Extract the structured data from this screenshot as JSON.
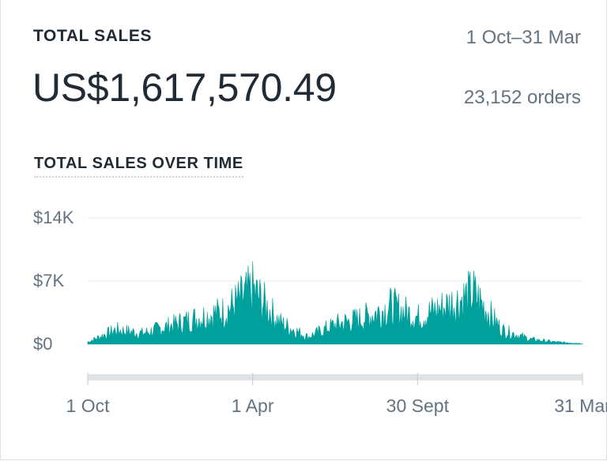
{
  "header": {
    "title": "TOTAL SALES",
    "date_range": "1 Oct–31 Mar",
    "total": "US$1,617,570.49",
    "orders": "23,152 orders",
    "subtitle": "TOTAL SALES OVER TIME"
  },
  "colors": {
    "series": "#00a09c",
    "grid": "#e6e9ec",
    "axis": "#dfe3e8",
    "text_muted": "#637381"
  },
  "chart_data": {
    "type": "area",
    "title": "TOTAL SALES OVER TIME",
    "xlabel": "",
    "ylabel": "",
    "ylim": [
      0,
      14000
    ],
    "y_ticks": [
      "$14K",
      "$7K",
      "$0"
    ],
    "y_tick_values": [
      14000,
      7000,
      0
    ],
    "x_ticks": [
      "1 Oct",
      "1 Apr",
      "30 Sept",
      "31 Mar"
    ],
    "x_range": [
      "2017-10-01",
      "2019-03-31"
    ],
    "grid": true,
    "legend": "none",
    "series": [
      {
        "values": [
          {
            "x": "2017-10-01",
            "y": 300
          },
          {
            "x": "2017-11-01",
            "y": 2000
          },
          {
            "x": "2017-12-01",
            "y": 1500
          },
          {
            "x": "2018-01-01",
            "y": 2600
          },
          {
            "x": "2018-02-01",
            "y": 3700
          },
          {
            "x": "2018-03-01",
            "y": 4500
          },
          {
            "x": "2018-04-01",
            "y": 7500
          },
          {
            "x": "2018-05-01",
            "y": 3000
          },
          {
            "x": "2018-06-01",
            "y": 1000
          },
          {
            "x": "2018-07-01",
            "y": 2700
          },
          {
            "x": "2018-08-01",
            "y": 3600
          },
          {
            "x": "2018-09-01",
            "y": 5200
          },
          {
            "x": "2018-10-01",
            "y": 3700
          },
          {
            "x": "2018-11-01",
            "y": 5300
          },
          {
            "x": "2018-12-01",
            "y": 7000
          },
          {
            "x": "2019-01-01",
            "y": 2000
          },
          {
            "x": "2019-02-01",
            "y": 700
          },
          {
            "x": "2019-03-01",
            "y": 300
          },
          {
            "x": "2019-03-31",
            "y": 100
          }
        ]
      }
    ]
  }
}
